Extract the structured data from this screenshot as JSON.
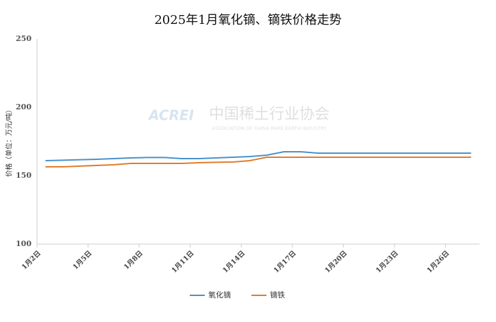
{
  "chart_data": {
    "type": "line",
    "title": "2025年1月氧化镝、镝铁价格走势",
    "y_label": "价格（单位：万元/吨）",
    "watermark": {
      "logo": "ACREI",
      "name": "中国稀土行业协会",
      "subtitle": "ASSOCIATION OF CHINA RARE EARTH INDUSTRY"
    },
    "categories": [
      "1月2日",
      null,
      null,
      "1月5日",
      null,
      null,
      "1月8日",
      null,
      null,
      "1月11日",
      null,
      null,
      "1月14日",
      null,
      null,
      "1月17日",
      null,
      null,
      "1月20日",
      null,
      null,
      "1月23日",
      null,
      null,
      "1月26日",
      null
    ],
    "series": [
      {
        "name": "氧化镝",
        "color": "#4a8fc9",
        "values": [
          161,
          161.3,
          161.7,
          162,
          162.5,
          163,
          163.3,
          163.3,
          162.5,
          162.5,
          163,
          163.5,
          164,
          165,
          167.5,
          167.5,
          166.5,
          166.5,
          166.5,
          166.5,
          166.5,
          166.5,
          166.5,
          166.5,
          166.5,
          166.5
        ]
      },
      {
        "name": "镝铁",
        "color": "#e07b2a",
        "values": [
          156.5,
          156.5,
          157,
          157.5,
          158,
          159,
          159,
          159,
          159,
          159.5,
          159.8,
          160,
          161,
          163.5,
          163.5,
          163.5,
          163.5,
          163.5,
          163.5,
          163.5,
          163.5,
          163.5,
          163.5,
          163.5,
          163.5,
          163.5
        ]
      }
    ],
    "ylim": [
      100,
      250
    ],
    "yticks": [
      100,
      150,
      200,
      250
    ],
    "grid": false,
    "legend": "bottom"
  }
}
